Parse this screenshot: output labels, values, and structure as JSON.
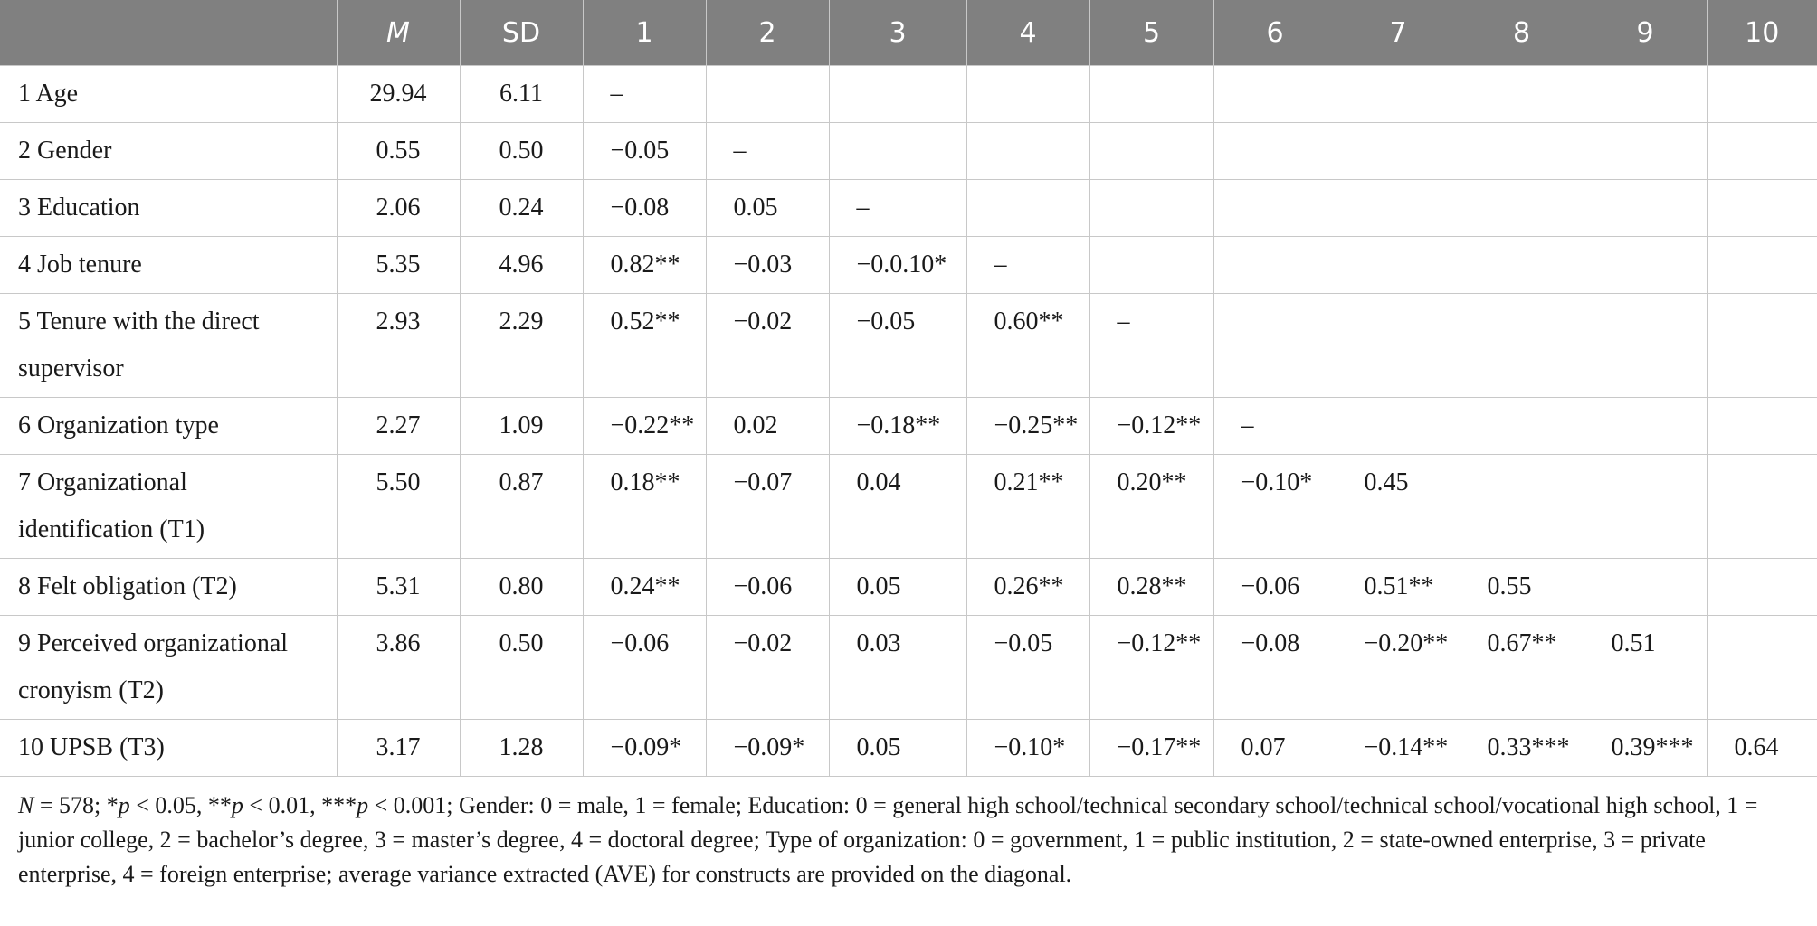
{
  "table": {
    "headers": {
      "label": "",
      "m": "M",
      "sd": "SD",
      "cols": [
        "1",
        "2",
        "3",
        "4",
        "5",
        "6",
        "7",
        "8",
        "9",
        "10"
      ]
    },
    "rows": [
      {
        "label": "1 Age",
        "m": "29.94",
        "sd": "6.11",
        "cells": [
          "–",
          "",
          "",
          "",
          "",
          "",
          "",
          "",
          "",
          ""
        ]
      },
      {
        "label": "2 Gender",
        "m": "0.55",
        "sd": "0.50",
        "cells": [
          "−0.05",
          "–",
          "",
          "",
          "",
          "",
          "",
          "",
          "",
          ""
        ]
      },
      {
        "label": "3 Education",
        "m": "2.06",
        "sd": "0.24",
        "cells": [
          "−0.08",
          "0.05",
          "–",
          "",
          "",
          "",
          "",
          "",
          "",
          ""
        ]
      },
      {
        "label": "4 Job tenure",
        "m": "5.35",
        "sd": "4.96",
        "cells": [
          "0.82**",
          "−0.03",
          "−0.0.10*",
          "–",
          "",
          "",
          "",
          "",
          "",
          ""
        ]
      },
      {
        "label": "5 Tenure with the direct supervisor",
        "m": "2.93",
        "sd": "2.29",
        "cells": [
          "0.52**",
          "−0.02",
          "−0.05",
          "0.60**",
          "–",
          "",
          "",
          "",
          "",
          ""
        ]
      },
      {
        "label": "6 Organization type",
        "m": "2.27",
        "sd": "1.09",
        "cells": [
          "−0.22**",
          "0.02",
          "−0.18**",
          "−0.25**",
          "−0.12**",
          "–",
          "",
          "",
          "",
          ""
        ]
      },
      {
        "label": "7 Organizational identification (T1)",
        "m": "5.50",
        "sd": "0.87",
        "cells": [
          "0.18**",
          "−0.07",
          "0.04",
          "0.21**",
          "0.20**",
          "−0.10*",
          "0.45",
          "",
          "",
          ""
        ]
      },
      {
        "label": "8 Felt obligation (T2)",
        "m": "5.31",
        "sd": "0.80",
        "cells": [
          "0.24**",
          "−0.06",
          "0.05",
          "0.26**",
          "0.28**",
          "−0.06",
          "0.51**",
          "0.55",
          "",
          ""
        ]
      },
      {
        "label": "9 Perceived organizational cronyism (T2)",
        "m": "3.86",
        "sd": "0.50",
        "cells": [
          "−0.06",
          "−0.02",
          "0.03",
          "−0.05",
          "−0.12**",
          "−0.08",
          "−0.20**",
          "0.67**",
          "0.51",
          ""
        ]
      },
      {
        "label": "10 UPSB (T3)",
        "m": "3.17",
        "sd": "1.28",
        "cells": [
          "−0.09*",
          "−0.09*",
          "0.05",
          "−0.10*",
          "−0.17**",
          "0.07",
          "−0.14**",
          "0.33***",
          "0.39***",
          "0.64"
        ]
      }
    ]
  },
  "note": {
    "n": "N",
    "n_rest": " = 578; *",
    "p1": "p",
    "p1_rest": " < 0.05, **",
    "p2": "p",
    "p2_rest": " < 0.01, ***",
    "p3": "p",
    "p3_rest": " < 0.001; Gender: 0 = male, 1 = female; Education: 0 = general high school/technical secondary school/technical school/vocational high school, 1 = junior college, 2 = bachelor’s degree, 3 = master’s degree, 4 = doctoral degree; Type of organization: 0 = government, 1 = public institution, 2 = state-owned enterprise, 3 = private enterprise, 4 = foreign enterprise; average variance extracted (AVE) for constructs are provided on the diagonal."
  }
}
